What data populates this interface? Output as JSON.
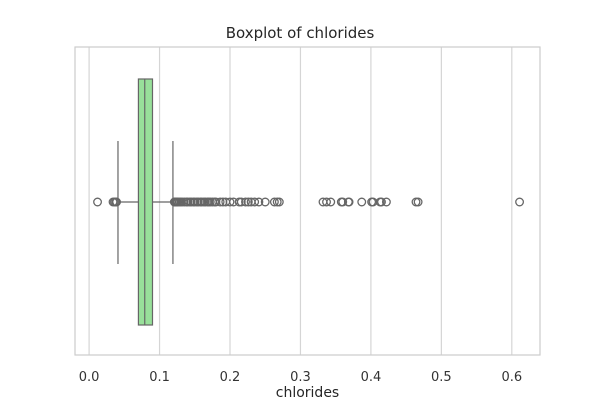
{
  "chart_data": {
    "type": "boxplot",
    "title": "Boxplot of chlorides",
    "xlabel": "chlorides",
    "ylabel": "",
    "orientation": "horizontal",
    "xlim": [
      -0.02,
      0.64
    ],
    "xticks": [
      0.0,
      0.1,
      0.2,
      0.3,
      0.4,
      0.5,
      0.6
    ],
    "xtick_labels": [
      "0.0",
      "0.1",
      "0.2",
      "0.3",
      "0.4",
      "0.5",
      "0.6"
    ],
    "grid": true,
    "box": {
      "whisker_low": 0.041,
      "q1": 0.07,
      "median": 0.079,
      "q3": 0.09,
      "whisker_high": 0.119
    },
    "outliers": [
      0.012,
      0.034,
      0.036,
      0.038,
      0.039,
      0.121,
      0.122,
      0.123,
      0.124,
      0.125,
      0.126,
      0.128,
      0.13,
      0.132,
      0.135,
      0.138,
      0.14,
      0.143,
      0.145,
      0.148,
      0.15,
      0.153,
      0.155,
      0.158,
      0.16,
      0.163,
      0.165,
      0.168,
      0.17,
      0.172,
      0.175,
      0.178,
      0.18,
      0.186,
      0.19,
      0.194,
      0.2,
      0.205,
      0.213,
      0.216,
      0.222,
      0.226,
      0.23,
      0.235,
      0.241,
      0.25,
      0.263,
      0.267,
      0.27,
      0.332,
      0.337,
      0.343,
      0.358,
      0.36,
      0.368,
      0.369,
      0.387,
      0.401,
      0.403,
      0.413,
      0.415,
      0.422,
      0.464,
      0.467,
      0.611
    ],
    "box_color": "#98e09a",
    "line_color": "#666666",
    "grid_color": "#d5d5d5"
  }
}
